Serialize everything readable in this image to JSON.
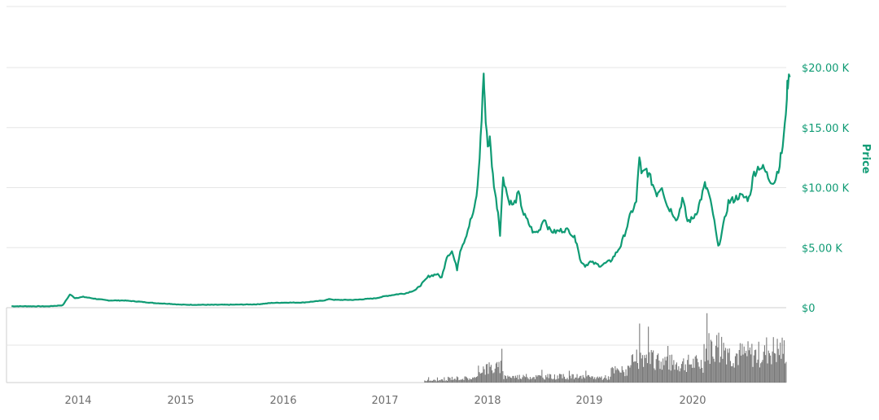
{
  "chart_data": {
    "type": "line",
    "ylabel": "Price",
    "ylim": [
      0,
      20000
    ],
    "y_ticks": [
      "$0",
      "$5.00 K",
      "$10.00 K",
      "$15.00 K",
      "$20.00 K"
    ],
    "y_tick_values": [
      0,
      5000,
      10000,
      15000,
      20000
    ],
    "x_ticks": [
      "2014",
      "2015",
      "2016",
      "2017",
      "2018",
      "2019",
      "2020"
    ],
    "x_tick_values": [
      2014,
      2015,
      2016,
      2017,
      2018,
      2019,
      2020
    ],
    "xlim": [
      2013.35,
      2020.95
    ],
    "colors": {
      "price_line": "#0f9b74",
      "volume_bars": "#7a7a7a",
      "axis_text": "#6d6d6d"
    },
    "series": [
      {
        "type": "line",
        "x": [
          2013.35,
          2013.5,
          2013.7,
          2013.85,
          2013.92,
          2013.97,
          2014.05,
          2014.2,
          2014.3,
          2014.45,
          2014.6,
          2014.75,
          2014.9,
          2015.0,
          2015.1,
          2015.3,
          2015.5,
          2015.6,
          2015.75,
          2015.9,
          2016.0,
          2016.2,
          2016.4,
          2016.46,
          2016.5,
          2016.7,
          2016.9,
          2017.0,
          2017.1,
          2017.2,
          2017.3,
          2017.38,
          2017.42,
          2017.5,
          2017.55,
          2017.6,
          2017.65,
          2017.7,
          2017.73,
          2017.78,
          2017.83,
          2017.87,
          2017.9,
          2017.93,
          2017.96,
          2017.97,
          2018.0,
          2018.02,
          2018.05,
          2018.08,
          2018.1,
          2018.12,
          2018.15,
          2018.2,
          2018.25,
          2018.3,
          2018.35,
          2018.4,
          2018.45,
          2018.5,
          2018.55,
          2018.6,
          2018.65,
          2018.7,
          2018.75,
          2018.8,
          2018.87,
          2018.9,
          2018.95,
          2019.0,
          2019.1,
          2019.2,
          2019.25,
          2019.3,
          2019.35,
          2019.4,
          2019.45,
          2019.48,
          2019.5,
          2019.55,
          2019.6,
          2019.65,
          2019.7,
          2019.75,
          2019.8,
          2019.85,
          2019.9,
          2019.95,
          2020.0,
          2020.05,
          2020.12,
          2020.15,
          2020.2,
          2020.25,
          2020.3,
          2020.35,
          2020.4,
          2020.45,
          2020.5,
          2020.55,
          2020.6,
          2020.65,
          2020.7,
          2020.75,
          2020.8,
          2020.85,
          2020.88,
          2020.9,
          2020.92,
          2020.93,
          2020.95
        ],
        "values": [
          120,
          120,
          110,
          200,
          1100,
          800,
          900,
          700,
          600,
          600,
          500,
          380,
          320,
          250,
          240,
          240,
          250,
          260,
          280,
          400,
          420,
          430,
          600,
          720,
          650,
          650,
          780,
          960,
          1100,
          1200,
          1500,
          2200,
          2600,
          2800,
          2500,
          4300,
          4700,
          3200,
          4800,
          5800,
          7200,
          8200,
          10000,
          14000,
          19600,
          17000,
          13500,
          14000,
          11000,
          9000,
          8000,
          6200,
          11000,
          9000,
          8500,
          9500,
          7800,
          7000,
          6200,
          6400,
          7500,
          6500,
          6300,
          6400,
          6500,
          6400,
          5500,
          4000,
          3500,
          3800,
          3500,
          3900,
          4500,
          5200,
          6500,
          7900,
          8800,
          12700,
          11000,
          11500,
          10500,
          9500,
          10200,
          8500,
          8000,
          7300,
          9100,
          7200,
          7400,
          8200,
          10200,
          9700,
          7800,
          5000,
          6800,
          8800,
          9000,
          9300,
          9200,
          9100,
          11200,
          11800,
          11500,
          10700,
          10500,
          12000,
          13500,
          15000,
          17800,
          18800,
          19200
        ]
      }
    ],
    "volume_note": "Volume bars shown beneath price axis; relative heights only (no volume axis labels printed)."
  }
}
